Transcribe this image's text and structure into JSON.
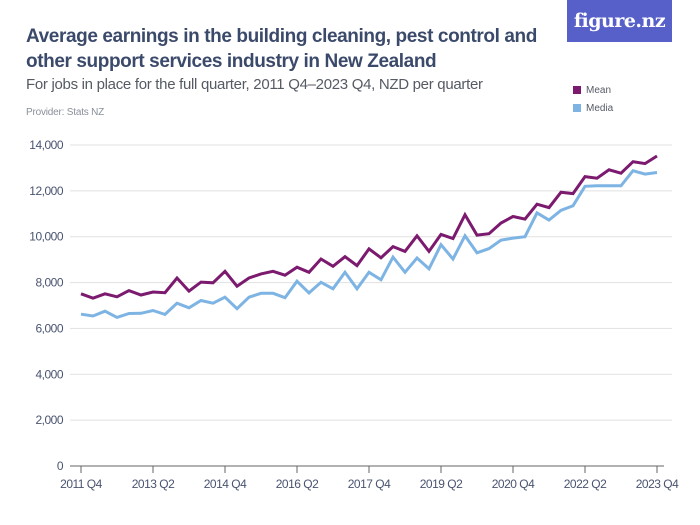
{
  "header": {
    "title": "Average earnings in the building cleaning, pest control and other support services industry in New Zealand",
    "subtitle": "For jobs in place for the full quarter, 2011 Q4–2023 Q4, NZD per quarter",
    "provider": "Provider: Stats NZ",
    "logo_text": "figure.nz",
    "logo_color": "#5660c8"
  },
  "chart_data": {
    "type": "line",
    "title": "Average earnings in the building cleaning, pest control and other support services industry in New Zealand",
    "subtitle": "For jobs in place for the full quarter, 2011 Q4–2023 Q4, NZD per quarter",
    "xlabel": "",
    "ylabel": "",
    "ylim": [
      0,
      14000
    ],
    "yticks": [
      0,
      2000,
      4000,
      6000,
      8000,
      10000,
      12000,
      14000
    ],
    "ytick_labels": [
      "0",
      "2,000",
      "4,000",
      "6,000",
      "8,000",
      "10,000",
      "12,000",
      "14,000"
    ],
    "grid": true,
    "legend_position": "top-right",
    "x": [
      "2011 Q4",
      "2012 Q1",
      "2012 Q2",
      "2012 Q3",
      "2012 Q4",
      "2013 Q1",
      "2013 Q2",
      "2013 Q3",
      "2013 Q4",
      "2014 Q1",
      "2014 Q2",
      "2014 Q3",
      "2014 Q4",
      "2015 Q1",
      "2015 Q2",
      "2015 Q3",
      "2015 Q4",
      "2016 Q1",
      "2016 Q2",
      "2016 Q3",
      "2016 Q4",
      "2017 Q1",
      "2017 Q2",
      "2017 Q3",
      "2017 Q4",
      "2018 Q1",
      "2018 Q2",
      "2018 Q3",
      "2018 Q4",
      "2019 Q1",
      "2019 Q2",
      "2019 Q3",
      "2019 Q4",
      "2020 Q1",
      "2020 Q2",
      "2020 Q3",
      "2020 Q4",
      "2021 Q1",
      "2021 Q2",
      "2021 Q3",
      "2021 Q4",
      "2022 Q1",
      "2022 Q2",
      "2022 Q3",
      "2022 Q4",
      "2023 Q1",
      "2023 Q2",
      "2023 Q3",
      "2023 Q4"
    ],
    "xtick_labels": [
      "2011 Q4",
      "2013 Q2",
      "2014 Q4",
      "2016 Q2",
      "2017 Q4",
      "2019 Q2",
      "2020 Q4",
      "2022 Q2",
      "2023 Q4"
    ],
    "xtick_indices": [
      0,
      6,
      12,
      18,
      24,
      30,
      36,
      42,
      48
    ],
    "series": [
      {
        "name": "Mean",
        "color": "#7b1a6e",
        "values": [
          7510,
          7320,
          7510,
          7380,
          7650,
          7460,
          7590,
          7560,
          8200,
          7630,
          8020,
          7990,
          8490,
          7840,
          8200,
          8380,
          8490,
          8320,
          8670,
          8450,
          9030,
          8710,
          9130,
          8740,
          9470,
          9080,
          9570,
          9360,
          10040,
          9360,
          10100,
          9920,
          10960,
          10070,
          10130,
          10600,
          10880,
          10770,
          11420,
          11270,
          11940,
          11880,
          12620,
          12550,
          12920,
          12770,
          13270,
          13190,
          13520
        ]
      },
      {
        "name": "Media",
        "color": "#7db4e3",
        "values": [
          6620,
          6540,
          6750,
          6480,
          6650,
          6660,
          6780,
          6610,
          7100,
          6900,
          7220,
          7100,
          7360,
          6860,
          7360,
          7530,
          7530,
          7340,
          8060,
          7550,
          8010,
          7730,
          8450,
          7730,
          8450,
          8120,
          9110,
          8450,
          9070,
          8600,
          9650,
          9030,
          10040,
          9300,
          9480,
          9850,
          9940,
          10000,
          11040,
          10730,
          11150,
          11350,
          12200,
          12220,
          12220,
          12220,
          12880,
          12730,
          12800
        ]
      }
    ]
  }
}
